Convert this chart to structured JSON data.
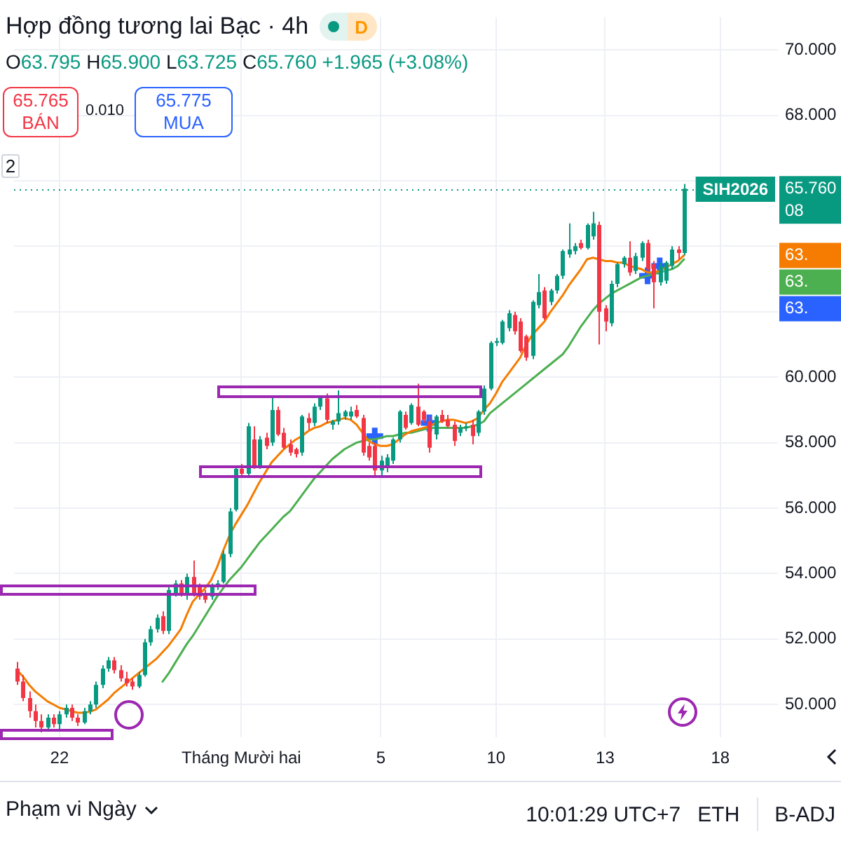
{
  "chart_data": {
    "type": "candlestick",
    "title": "Hợp đồng tương lai Bạc · 4h",
    "subtitle": "O63.795 H65.900 L63.725 C65.760 +1.965 (+3.08%)",
    "categories": [
      null,
      null,
      null,
      null,
      null,
      null,
      null,
      "22",
      null,
      null,
      null,
      null,
      null,
      null,
      null,
      null,
      null,
      null,
      null,
      null,
      null,
      null,
      null,
      null,
      null,
      null,
      null,
      null,
      null,
      null,
      null,
      null,
      null,
      null,
      null,
      null,
      null,
      "Tháng Mười hai",
      null,
      null,
      null,
      null,
      null,
      null,
      null,
      null,
      null,
      null,
      null,
      null,
      null,
      null,
      null,
      null,
      null,
      null,
      null,
      null,
      null,
      null,
      "5",
      null,
      null,
      null,
      null,
      null,
      null,
      null,
      null,
      null,
      null,
      null,
      null,
      null,
      null,
      null,
      null,
      null,
      null,
      "10",
      null,
      null,
      null,
      null,
      null,
      null,
      null,
      null,
      null,
      null,
      null,
      null,
      null,
      null,
      null,
      null,
      null,
      "13",
      null,
      null,
      null,
      null,
      null,
      null,
      null,
      null,
      null,
      null,
      null,
      null,
      null,
      null,
      null,
      null,
      null,
      null,
      "18",
      null,
      null,
      null,
      null,
      null,
      null,
      null,
      null,
      null
    ],
    "ohlc": [
      [
        51.1,
        51.3,
        50.6,
        50.7
      ],
      [
        50.7,
        50.9,
        50.1,
        50.2
      ],
      [
        50.2,
        50.4,
        49.6,
        49.8
      ],
      [
        49.8,
        50.0,
        49.3,
        49.5
      ],
      [
        49.5,
        49.7,
        49.15,
        49.3
      ],
      [
        49.3,
        49.7,
        49.2,
        49.6
      ],
      [
        49.6,
        49.7,
        49.3,
        49.4
      ],
      [
        49.4,
        49.8,
        49.25,
        49.7
      ],
      [
        49.7,
        50.0,
        49.6,
        49.9
      ],
      [
        49.9,
        50.0,
        49.5,
        49.6
      ],
      [
        49.6,
        49.7,
        49.35,
        49.45
      ],
      [
        49.45,
        49.9,
        49.4,
        49.8
      ],
      [
        49.8,
        50.1,
        49.7,
        50.0
      ],
      [
        50.0,
        50.7,
        49.9,
        50.6
      ],
      [
        50.6,
        51.2,
        50.5,
        51.1
      ],
      [
        51.1,
        51.45,
        51.0,
        51.35
      ],
      [
        51.35,
        51.45,
        50.95,
        51.05
      ],
      [
        51.05,
        51.2,
        50.7,
        50.8
      ],
      [
        50.8,
        51.0,
        50.55,
        50.65
      ],
      [
        50.7,
        50.8,
        50.45,
        50.55
      ],
      [
        50.55,
        51.0,
        50.5,
        50.9
      ],
      [
        50.9,
        52.0,
        50.85,
        51.9
      ],
      [
        51.9,
        52.4,
        51.8,
        52.3
      ],
      [
        52.3,
        52.75,
        52.2,
        52.65
      ],
      [
        52.7,
        52.85,
        52.15,
        52.25
      ],
      [
        52.25,
        53.6,
        52.15,
        53.5
      ],
      [
        53.4,
        53.8,
        53.3,
        53.7
      ],
      [
        53.7,
        53.8,
        53.3,
        53.4
      ],
      [
        53.4,
        54.0,
        53.2,
        53.9
      ],
      [
        53.9,
        54.4,
        53.3,
        53.4
      ],
      [
        53.6,
        53.7,
        53.2,
        53.3
      ],
      [
        53.4,
        53.5,
        53.1,
        53.2
      ],
      [
        53.3,
        53.7,
        53.2,
        53.6
      ],
      [
        53.6,
        53.8,
        53.5,
        53.7
      ],
      [
        53.75,
        54.7,
        53.7,
        54.6
      ],
      [
        54.6,
        56.0,
        54.5,
        55.9
      ],
      [
        55.95,
        57.3,
        55.9,
        57.2
      ],
      [
        57.2,
        57.35,
        56.95,
        57.05
      ],
      [
        57.05,
        58.6,
        56.95,
        58.5
      ],
      [
        58.1,
        58.5,
        57.2,
        57.3
      ],
      [
        57.3,
        58.2,
        57.2,
        58.1
      ],
      [
        58.15,
        58.3,
        57.8,
        57.9
      ],
      [
        58.0,
        59.4,
        57.9,
        59.0
      ],
      [
        59.0,
        59.1,
        58.2,
        58.25
      ],
      [
        58.3,
        58.45,
        57.8,
        57.85
      ],
      [
        57.95,
        58.1,
        57.6,
        57.7
      ],
      [
        57.8,
        57.85,
        57.55,
        57.65
      ],
      [
        57.7,
        58.85,
        57.6,
        58.8
      ],
      [
        58.75,
        58.9,
        58.4,
        58.6
      ],
      [
        58.6,
        59.2,
        58.5,
        59.1
      ],
      [
        59.1,
        59.45,
        59.0,
        59.4
      ],
      [
        59.35,
        59.5,
        58.6,
        58.7
      ],
      [
        58.55,
        58.7,
        58.4,
        58.65
      ],
      [
        58.65,
        59.6,
        58.55,
        58.9
      ],
      [
        58.8,
        59.0,
        58.7,
        58.95
      ],
      [
        58.8,
        59.1,
        58.7,
        58.95
      ],
      [
        59.0,
        59.15,
        58.75,
        58.8
      ],
      [
        58.75,
        58.85,
        57.6,
        57.7
      ],
      [
        57.9,
        58.0,
        57.45,
        57.55
      ],
      [
        57.9,
        58.0,
        57.0,
        57.15
      ],
      [
        57.15,
        57.6,
        56.95,
        57.45
      ],
      [
        57.3,
        57.65,
        57.1,
        57.55
      ],
      [
        57.45,
        58.15,
        57.35,
        58.1
      ],
      [
        58.1,
        59.0,
        58.0,
        58.95
      ],
      [
        58.85,
        58.95,
        58.4,
        58.45
      ],
      [
        58.6,
        59.2,
        58.55,
        59.15
      ],
      [
        59.1,
        59.8,
        58.5,
        58.55
      ],
      [
        58.95,
        59.0,
        58.6,
        58.7
      ],
      [
        58.65,
        58.8,
        57.7,
        57.85
      ],
      [
        58.25,
        58.85,
        58.1,
        58.8
      ],
      [
        58.85,
        59.0,
        58.6,
        58.65
      ],
      [
        58.7,
        58.85,
        58.45,
        58.5
      ],
      [
        58.55,
        58.65,
        57.9,
        58.05
      ],
      [
        58.3,
        58.55,
        58.2,
        58.45
      ],
      [
        58.45,
        58.6,
        58.35,
        58.5
      ],
      [
        58.55,
        58.7,
        57.95,
        58.2
      ],
      [
        58.3,
        59.0,
        58.2,
        58.95
      ],
      [
        58.95,
        59.75,
        58.85,
        59.65
      ],
      [
        59.65,
        61.1,
        59.6,
        61.05
      ],
      [
        61.05,
        61.2,
        60.95,
        61.1
      ],
      [
        61.05,
        61.75,
        61.0,
        61.7
      ],
      [
        61.5,
        62.05,
        61.4,
        61.95
      ],
      [
        61.9,
        62.0,
        61.3,
        61.4
      ],
      [
        61.7,
        61.8,
        60.75,
        60.8
      ],
      [
        61.25,
        61.3,
        60.5,
        60.6
      ],
      [
        60.65,
        62.35,
        60.55,
        62.3
      ],
      [
        62.2,
        63.15,
        62.1,
        62.6
      ],
      [
        62.65,
        62.75,
        61.75,
        61.8
      ],
      [
        62.3,
        62.7,
        62.2,
        62.65
      ],
      [
        62.65,
        63.15,
        62.55,
        63.1
      ],
      [
        63.1,
        63.9,
        63.0,
        63.85
      ],
      [
        63.75,
        64.7,
        63.65,
        63.9
      ],
      [
        63.85,
        64.1,
        63.75,
        64.0
      ],
      [
        64.1,
        64.2,
        63.9,
        63.95
      ],
      [
        63.95,
        64.7,
        63.9,
        64.65
      ],
      [
        64.3,
        65.05,
        64.2,
        64.7
      ],
      [
        64.65,
        64.75,
        61.0,
        62.0
      ],
      [
        62.1,
        62.2,
        61.4,
        61.7
      ],
      [
        61.65,
        62.95,
        61.55,
        62.85
      ],
      [
        62.85,
        63.5,
        62.75,
        63.45
      ],
      [
        63.45,
        63.7,
        63.35,
        63.65
      ],
      [
        63.65,
        64.15,
        63.1,
        63.2
      ],
      [
        63.25,
        63.8,
        63.15,
        63.7
      ],
      [
        63.65,
        64.15,
        63.55,
        64.1
      ],
      [
        64.1,
        64.2,
        63.25,
        63.3
      ],
      [
        63.45,
        63.55,
        62.1,
        62.9
      ],
      [
        62.9,
        63.5,
        62.8,
        63.4
      ],
      [
        62.95,
        63.55,
        62.85,
        63.5
      ],
      [
        63.4,
        64.0,
        63.3,
        63.9
      ],
      [
        63.9,
        64.0,
        63.6,
        63.795
      ],
      [
        63.795,
        65.9,
        63.725,
        65.76
      ],
      null,
      null,
      null,
      null,
      null,
      null,
      null,
      null,
      null,
      null,
      null,
      null,
      null,
      null,
      null
    ],
    "colors": [
      "#f23645",
      "#f23645",
      "#f23645",
      "#f23645",
      "#f23645",
      "#089981",
      "#f23645",
      "#089981",
      "#089981",
      "#f23645",
      "#f23645",
      "#089981",
      "#089981",
      "#089981",
      "#089981",
      "#089981",
      "#f23645",
      "#f23645",
      "#f23645",
      "#f23645",
      "#089981",
      "#089981",
      "#089981",
      "#089981",
      "#f23645",
      "#089981",
      "#089981",
      "#f23645",
      "#089981",
      "#f23645",
      "#f23645",
      "#f23645",
      "#089981",
      "#089981",
      "#089981",
      "#089981",
      "#089981",
      "#f23645",
      "#089981",
      "#f23645",
      "#089981",
      "#f23645",
      "#089981",
      "#f23645",
      "#f23645",
      "#f23645",
      "#f23645",
      "#089981",
      "#f23645",
      "#089981",
      "#089981",
      "#f23645",
      "#089981",
      "#089981",
      "#089981",
      "#089981",
      "#f23645",
      "#f23645",
      "#f23645",
      "#f23645",
      "#089981",
      "#089981",
      "#089981",
      "#089981",
      "#f23645",
      "#089981",
      "#f23645",
      "#f23645",
      "#f23645",
      "#089981",
      "#f23645",
      "#f23645",
      "#f23645",
      "#089981",
      "#089981",
      "#f23645",
      "#089981",
      "#089981",
      "#089981",
      "#089981",
      "#089981",
      "#089981",
      "#f23645",
      "#f23645",
      "#f23645",
      "#089981",
      "#089981",
      "#f23645",
      "#089981",
      "#089981",
      "#089981",
      "#089981",
      "#089981",
      "#f23645",
      "#089981",
      "#089981",
      "#f23645",
      "#f23645",
      "#089981",
      "#089981",
      "#089981",
      "#f23645",
      "#089981",
      "#089981",
      "#f23645",
      "#f23645",
      "#089981",
      "#089981",
      "#089981",
      "#f23645",
      "#089981",
      null,
      null,
      null,
      null,
      null,
      null,
      null,
      null,
      null,
      null,
      null,
      null,
      null,
      null,
      null
    ],
    "series": [
      {
        "type": "line",
        "color": "#f57c00",
        "values": [
          51.05,
          50.85,
          50.6,
          50.4,
          50.25,
          50.1,
          50.0,
          49.9,
          49.85,
          49.8,
          49.75,
          49.75,
          49.78,
          49.85,
          50.0,
          50.15,
          50.35,
          50.5,
          50.65,
          50.8,
          50.95,
          51.1,
          51.25,
          51.4,
          51.6,
          51.8,
          52.05,
          52.3,
          52.75,
          53.15,
          53.35,
          53.55,
          53.8,
          54.2,
          54.7,
          55.15,
          55.5,
          55.8,
          56.1,
          56.45,
          56.8,
          57.1,
          57.4,
          57.6,
          57.8,
          57.95,
          58.1,
          58.2,
          58.35,
          58.45,
          58.5,
          58.6,
          58.65,
          58.7,
          58.75,
          58.7,
          58.55,
          58.3,
          58.05,
          57.95,
          57.9,
          57.9,
          57.95,
          58.1,
          58.25,
          58.35,
          58.4,
          58.45,
          58.5,
          58.6,
          58.65,
          58.7,
          58.7,
          58.65,
          58.6,
          58.65,
          58.75,
          59.0,
          59.2,
          59.5,
          59.85,
          60.1,
          60.35,
          60.6,
          61.0,
          61.3,
          61.5,
          61.7,
          62.0,
          62.25,
          62.5,
          62.8,
          63.05,
          63.3,
          63.6,
          63.65,
          63.6,
          63.55,
          63.55,
          63.5,
          63.5,
          63.4,
          63.35,
          63.3,
          63.2,
          63.2,
          63.25,
          63.35,
          63.45,
          63.55,
          63.72,
          null,
          null,
          null,
          null,
          null,
          null,
          null,
          null,
          null,
          null,
          null,
          null,
          null,
          null,
          null
        ]
      },
      {
        "type": "line",
        "color": "#4caf50",
        "values": [
          null,
          null,
          null,
          null,
          null,
          null,
          null,
          null,
          null,
          null,
          null,
          null,
          null,
          null,
          null,
          null,
          null,
          null,
          null,
          null,
          null,
          null,
          null,
          null,
          50.7,
          50.95,
          51.25,
          51.55,
          51.85,
          52.1,
          52.4,
          52.7,
          53.0,
          53.3,
          53.55,
          53.8,
          54.0,
          54.2,
          54.45,
          54.7,
          54.95,
          55.15,
          55.35,
          55.55,
          55.75,
          55.9,
          56.15,
          56.4,
          56.65,
          56.9,
          57.1,
          57.3,
          57.5,
          57.65,
          57.8,
          57.9,
          58.0,
          58.05,
          58.1,
          58.1,
          58.15,
          58.2,
          58.2,
          58.25,
          58.3,
          58.3,
          58.35,
          58.4,
          58.45,
          58.45,
          58.45,
          58.45,
          58.45,
          58.45,
          58.45,
          58.5,
          58.55,
          58.65,
          58.9,
          59.05,
          59.2,
          59.35,
          59.5,
          59.65,
          59.8,
          59.95,
          60.1,
          60.25,
          60.4,
          60.55,
          60.7,
          60.95,
          61.25,
          61.55,
          61.8,
          62.05,
          62.25,
          62.4,
          62.55,
          62.65,
          62.75,
          62.85,
          62.95,
          63.05,
          63.1,
          63.15,
          63.2,
          63.25,
          63.3,
          63.4,
          63.6,
          null,
          null,
          null,
          null,
          null,
          null,
          null,
          null,
          null,
          null,
          null,
          null,
          null,
          null,
          null
        ]
      },
      {
        "type": "scatter",
        "color": "#2962ff",
        "marker": "cross",
        "values": [
          null,
          null,
          null,
          null,
          null,
          null,
          null,
          null,
          null,
          null,
          null,
          null,
          null,
          null,
          null,
          null,
          null,
          null,
          null,
          null,
          null,
          null,
          null,
          null,
          null,
          null,
          null,
          null,
          null,
          null,
          null,
          null,
          null,
          null,
          null,
          null,
          null,
          null,
          null,
          null,
          null,
          null,
          null,
          null,
          null,
          null,
          null,
          null,
          null,
          null,
          null,
          null,
          null,
          null,
          null,
          null,
          null,
          null,
          null,
          58.2,
          null,
          null,
          null,
          null,
          null,
          null,
          null,
          null,
          58.6,
          null,
          null,
          null,
          null,
          null,
          null,
          null,
          null,
          null,
          null,
          null,
          null,
          null,
          null,
          null,
          null,
          null,
          null,
          null,
          null,
          null,
          null,
          null,
          null,
          null,
          null,
          null,
          null,
          null,
          null,
          null,
          null,
          null,
          null,
          null,
          63.1,
          null,
          63.4,
          null,
          null,
          null,
          null,
          null,
          null,
          null,
          null,
          null,
          null,
          null,
          null,
          null,
          null,
          null,
          null,
          null,
          null,
          null
        ]
      }
    ],
    "ylim": [
      49,
      71
    ],
    "yticks": [
      {
        "value": 50,
        "label": "50.000"
      },
      {
        "value": 52,
        "label": "52.000"
      },
      {
        "value": 54,
        "label": "54.000"
      },
      {
        "value": 56,
        "label": "56.000"
      },
      {
        "value": 58,
        "label": "58.000"
      },
      {
        "value": 60,
        "label": "60.000"
      },
      {
        "value": 62,
        "label": null
      },
      {
        "value": 64,
        "label": null
      },
      {
        "value": 66,
        "label": null
      },
      {
        "value": 68,
        "label": "68.000"
      },
      {
        "value": 70,
        "label": "70.000"
      }
    ],
    "grid": true,
    "ref_lines": [
      {
        "axis": "y",
        "value": 65.76,
        "label": "SIH2026",
        "color": "#089981",
        "line_style": "dotted"
      }
    ],
    "annotations": [
      "D",
      "65.765",
      "BÁN",
      "0.010",
      "65.775",
      "MUA",
      "2",
      "Phạm vi Ngày",
      "10:01:29 UTC+7",
      "ETH",
      "B-ADJ",
      "65.760",
      "08",
      "63.",
      "63.",
      "63."
    ]
  }
}
